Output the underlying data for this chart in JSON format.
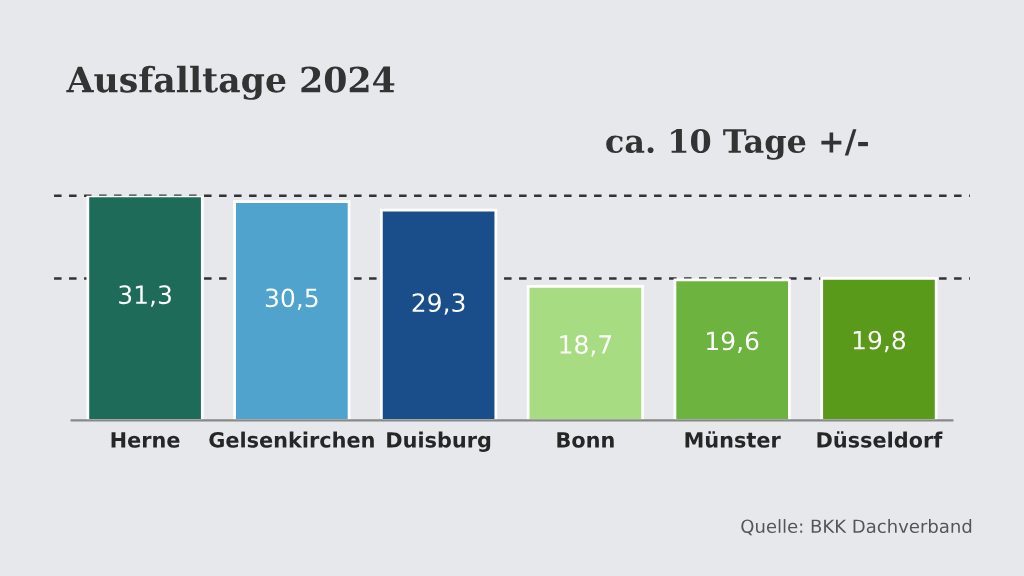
{
  "chart_data": {
    "type": "bar",
    "title": "Ausfalltage 2024",
    "categories": [
      "Herne",
      "Gelsenkirchen",
      "Duisburg",
      "Bonn",
      "Münster",
      "Düsseldorf"
    ],
    "values": [
      31.3,
      30.5,
      29.3,
      18.7,
      19.6,
      19.8
    ],
    "colors": [
      "#1f6b5a",
      "#4fa3cc",
      "#1a4e8a",
      "#a8dc82",
      "#6db33f",
      "#5a9a1a"
    ],
    "value_labels": [
      "31,3",
      "30,5",
      "29,3",
      "18,7",
      "19,6",
      "19,8"
    ],
    "ref_lines": [
      {
        "axis": "y",
        "value": 31.3,
        "label": null,
        "color": "#333333",
        "line_style": "dashed"
      },
      {
        "axis": "y",
        "value": 19.8,
        "label": null,
        "color": "#333333",
        "line_style": "dashed"
      }
    ],
    "annotations": [
      "ca. 10 Tage +/-",
      "Quelle: BKK Dachverband"
    ],
    "grid": false,
    "legend": false
  }
}
